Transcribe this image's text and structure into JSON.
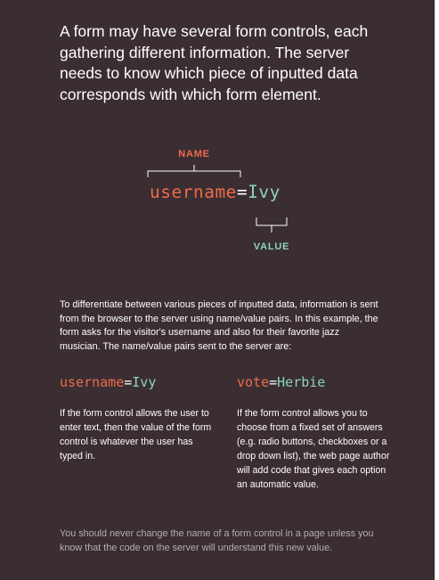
{
  "intro": "A form may have several form controls, each gathering different information. The server needs to know which piece of inputted data corresponds with which form element.",
  "diagram": {
    "name_label": "NAME",
    "value_label": "VALUE",
    "name": "username",
    "equals": "=",
    "value": "Ivy"
  },
  "paragraph": "To differentiate between various pieces of inputted data, information is sent from the browser to the server using name/value pairs. In this example, the form asks for the visitor's username and also for their favorite jazz musician. The name/value pairs sent to the server are:",
  "pairs": [
    {
      "name": "username",
      "equals": "=",
      "value": "Ivy",
      "description": "If the form control allows the user to enter text, then the value of the form control is whatever the user has typed in."
    },
    {
      "name": "vote",
      "equals": "=",
      "value": "Herbie",
      "description": "If the form control allows you to choose from a fixed set of answers (e.g. radio buttons, checkboxes or a drop down list), the web page author will add code that gives each option an automatic value."
    }
  ],
  "note": "You should never change the name of a form control in a page unless you know that the code on the server will understand this new value.",
  "colors": {
    "background": "#3a2e32",
    "name": "#ee6b4a",
    "value": "#8ed1c2",
    "text": "#ffffff",
    "muted_text": "#b4aeaf"
  }
}
